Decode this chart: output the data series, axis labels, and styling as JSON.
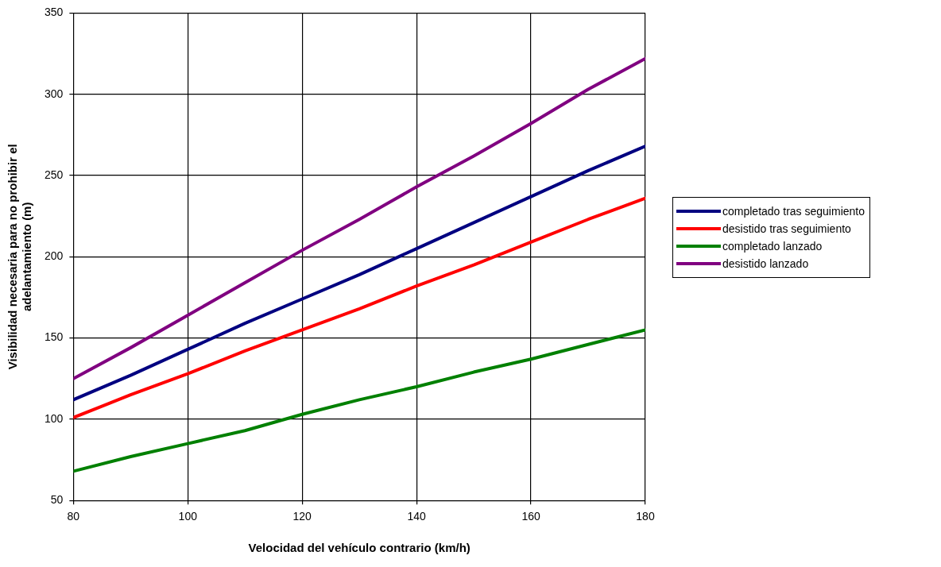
{
  "chart_data": {
    "type": "line",
    "xlabel": "Velocidad del vehículo contrario (km/h)",
    "ylabel": "Visibilidad necesaria para no prohibir el adelantamiento (m)",
    "x": [
      80,
      90,
      100,
      110,
      120,
      130,
      140,
      150,
      160,
      170,
      180
    ],
    "series": [
      {
        "name": "completado tras seguimiento",
        "color": "#000080",
        "values": [
          112,
          127,
          143,
          159,
          174,
          189,
          205,
          221,
          237,
          253,
          268
        ]
      },
      {
        "name": "desistido tras seguimiento",
        "color": "#ff0000",
        "values": [
          101,
          115,
          128,
          142,
          155,
          168,
          182,
          195,
          209,
          223,
          236
        ]
      },
      {
        "name": "completado lanzado",
        "color": "#008000",
        "values": [
          68,
          77,
          85,
          93,
          103,
          112,
          120,
          129,
          137,
          146,
          155
        ]
      },
      {
        "name": "desistido lanzado",
        "color": "#800080",
        "values": [
          125,
          144,
          164,
          184,
          204,
          223,
          243,
          262,
          282,
          303,
          322
        ]
      }
    ],
    "xlim": [
      80,
      180
    ],
    "xticks": [
      80,
      100,
      120,
      140,
      160,
      180
    ],
    "ylim": [
      50,
      350
    ],
    "yticks": [
      50,
      100,
      150,
      200,
      250,
      300,
      350
    ],
    "grid": true,
    "legend": "right",
    "marker": "none",
    "line_style": "solid"
  }
}
